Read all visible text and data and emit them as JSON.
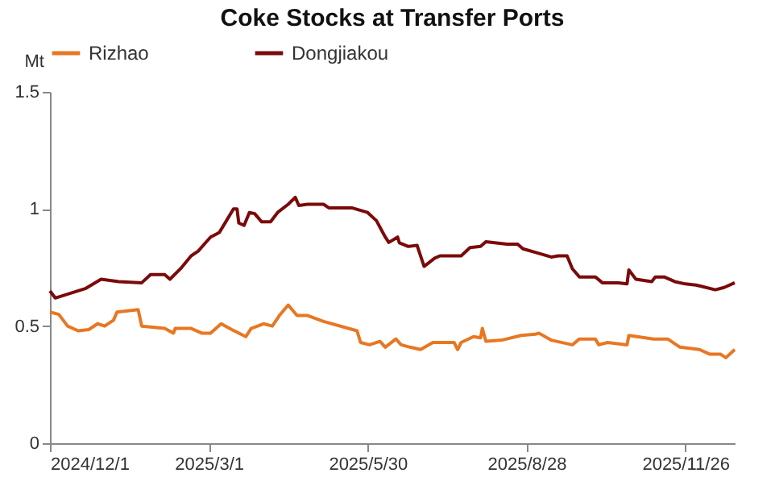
{
  "chart_data": {
    "type": "line",
    "title": "Coke Stocks at Transfer Ports",
    "ylabel": "Mt",
    "xlim": [
      "2024-12-01",
      "2025-12-24"
    ],
    "xticks": [
      {
        "value": "2024-12-01",
        "label": "2024/12/1"
      },
      {
        "value": "2025-03-01",
        "label": "2025/3/1"
      },
      {
        "value": "2025-05-30",
        "label": "2025/5/30"
      },
      {
        "value": "2025-08-28",
        "label": "2025/8/28"
      },
      {
        "value": "2025-11-26",
        "label": "2025/11/26"
      }
    ],
    "ylim": [
      0,
      1.5
    ],
    "yticks": [
      0,
      0.5,
      1,
      1.5
    ],
    "grid": false,
    "legend": "top",
    "marker": "none",
    "line_style": "solid",
    "series": [
      {
        "name": "Rizhao",
        "color": "#e87722",
        "x": [
          "2024-12-01",
          "2024-12-06",
          "2024-12-11",
          "2024-12-17",
          "2024-12-23",
          "2024-12-28",
          "2025-01-01",
          "2025-01-06",
          "2025-01-08",
          "2025-01-20",
          "2025-01-22",
          "2025-02-04",
          "2025-02-09",
          "2025-02-10",
          "2025-02-19",
          "2025-02-25",
          "2025-03-02",
          "2025-03-08",
          "2025-03-14",
          "2025-03-22",
          "2025-03-25",
          "2025-04-01",
          "2025-04-06",
          "2025-04-10",
          "2025-04-15",
          "2025-04-20",
          "2025-04-26",
          "2025-05-05",
          "2025-05-24",
          "2025-05-26",
          "2025-05-31",
          "2025-06-06",
          "2025-06-09",
          "2025-06-15",
          "2025-06-18",
          "2025-06-23",
          "2025-06-29",
          "2025-07-06",
          "2025-07-18",
          "2025-07-20",
          "2025-07-22",
          "2025-07-29",
          "2025-08-02",
          "2025-08-03",
          "2025-08-05",
          "2025-08-14",
          "2025-08-25",
          "2025-09-02",
          "2025-09-04",
          "2025-09-11",
          "2025-09-23",
          "2025-09-27",
          "2025-10-06",
          "2025-10-08",
          "2025-10-13",
          "2025-10-24",
          "2025-10-25",
          "2025-11-08",
          "2025-11-16",
          "2025-11-23",
          "2025-12-04",
          "2025-12-10",
          "2025-12-16",
          "2025-12-19",
          "2025-12-24"
        ],
        "values": [
          0.56,
          0.55,
          0.5,
          0.48,
          0.485,
          0.51,
          0.5,
          0.525,
          0.56,
          0.57,
          0.5,
          0.49,
          0.47,
          0.49,
          0.49,
          0.47,
          0.47,
          0.51,
          0.485,
          0.455,
          0.49,
          0.51,
          0.5,
          0.545,
          0.59,
          0.545,
          0.545,
          0.52,
          0.48,
          0.43,
          0.42,
          0.435,
          0.41,
          0.445,
          0.42,
          0.41,
          0.4,
          0.43,
          0.43,
          0.4,
          0.43,
          0.455,
          0.45,
          0.49,
          0.435,
          0.44,
          0.46,
          0.465,
          0.47,
          0.44,
          0.42,
          0.445,
          0.445,
          0.42,
          0.43,
          0.42,
          0.46,
          0.445,
          0.445,
          0.41,
          0.4,
          0.38,
          0.38,
          0.365,
          0.4
        ]
      },
      {
        "name": "Dongjiakou",
        "color": "#7b0a0a",
        "x": [
          "2024-12-01",
          "2024-12-04",
          "2024-12-21",
          "2024-12-30",
          "2025-01-09",
          "2025-01-22",
          "2025-01-27",
          "2025-02-04",
          "2025-02-07",
          "2025-02-13",
          "2025-02-19",
          "2025-02-23",
          "2025-03-02",
          "2025-03-07",
          "2025-03-11",
          "2025-03-15",
          "2025-03-17",
          "2025-03-18",
          "2025-03-21",
          "2025-03-24",
          "2025-03-27",
          "2025-03-31",
          "2025-04-05",
          "2025-04-09",
          "2025-04-15",
          "2025-04-19",
          "2025-04-21",
          "2025-04-26",
          "2025-05-05",
          "2025-05-08",
          "2025-05-21",
          "2025-05-30",
          "2025-06-04",
          "2025-06-09",
          "2025-06-11",
          "2025-06-16",
          "2025-06-17",
          "2025-06-22",
          "2025-06-27",
          "2025-07-01",
          "2025-07-07",
          "2025-07-10",
          "2025-07-22",
          "2025-07-27",
          "2025-08-02",
          "2025-08-05",
          "2025-08-17",
          "2025-08-23",
          "2025-08-26",
          "2025-09-02",
          "2025-09-11",
          "2025-09-15",
          "2025-09-20",
          "2025-09-23",
          "2025-09-27",
          "2025-10-06",
          "2025-10-10",
          "2025-10-19",
          "2025-10-24",
          "2025-10-25",
          "2025-10-29",
          "2025-11-07",
          "2025-11-09",
          "2025-11-14",
          "2025-11-20",
          "2025-11-26",
          "2025-12-02",
          "2025-12-05",
          "2025-12-13",
          "2025-12-18",
          "2025-12-24"
        ],
        "values": [
          0.65,
          0.62,
          0.66,
          0.7,
          0.69,
          0.685,
          0.72,
          0.72,
          0.7,
          0.745,
          0.8,
          0.82,
          0.88,
          0.9,
          0.95,
          1.0,
          1.0,
          0.94,
          0.93,
          0.985,
          0.98,
          0.945,
          0.945,
          0.985,
          1.02,
          1.05,
          1.015,
          1.02,
          1.02,
          1.005,
          1.005,
          0.985,
          0.95,
          0.88,
          0.857,
          0.88,
          0.855,
          0.84,
          0.845,
          0.755,
          0.79,
          0.8,
          0.8,
          0.835,
          0.84,
          0.86,
          0.85,
          0.85,
          0.83,
          0.815,
          0.795,
          0.8,
          0.8,
          0.745,
          0.71,
          0.71,
          0.685,
          0.685,
          0.68,
          0.74,
          0.7,
          0.69,
          0.71,
          0.71,
          0.69,
          0.68,
          0.675,
          0.67,
          0.655,
          0.665,
          0.685
        ]
      }
    ]
  }
}
